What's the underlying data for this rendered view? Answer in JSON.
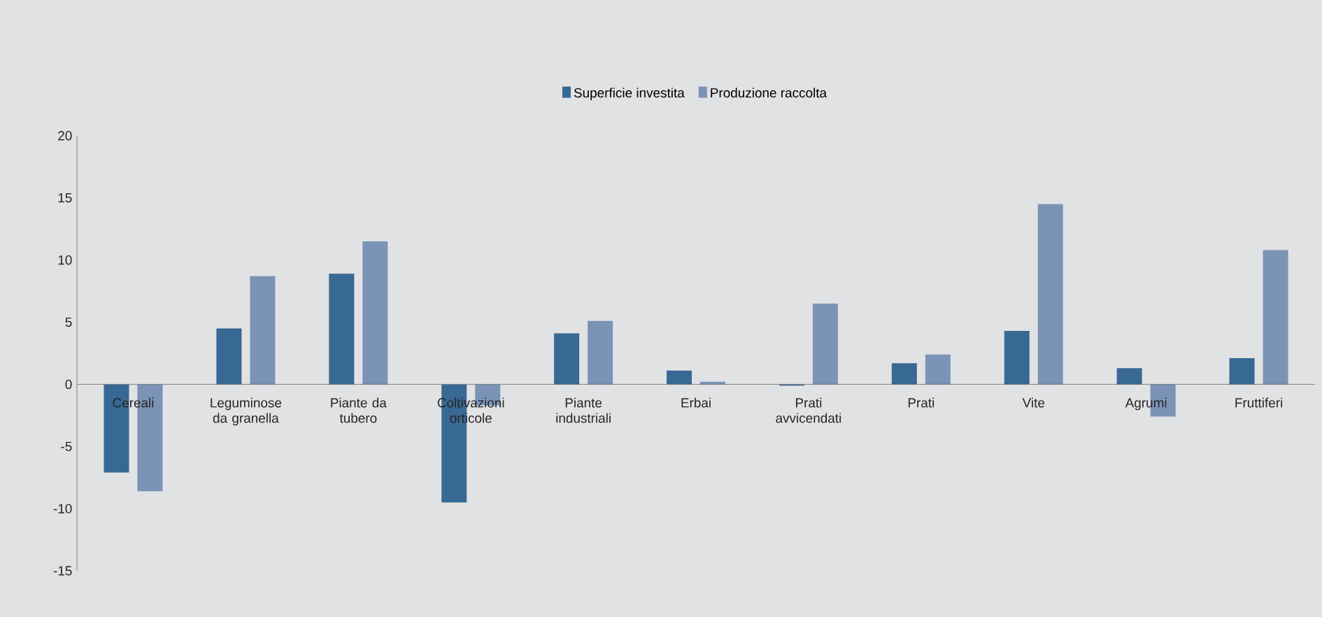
{
  "chart_data": {
    "type": "bar",
    "categories": [
      "Cereali",
      "Leguminose da granella",
      "Piante da tubero",
      "Coltivazioni orticole",
      "Piante industriali",
      "Erbai",
      "Prati avvicendati",
      "Prati",
      "Vite",
      "Agrumi",
      "Fruttiferi"
    ],
    "series": [
      {
        "name": "Superficie investita",
        "color": "#386894",
        "values": [
          -7.1,
          4.5,
          8.9,
          -9.5,
          4.1,
          1.1,
          -0.1,
          1.7,
          4.3,
          1.3,
          2.1
        ]
      },
      {
        "name": "Produzione raccolta",
        "color": "#7b93b7",
        "values": [
          -8.6,
          8.7,
          11.5,
          -1.7,
          5.1,
          0.2,
          6.5,
          2.4,
          14.5,
          -2.6,
          10.8
        ]
      }
    ],
    "ylim": [
      -15,
      20
    ],
    "yticks": [
      -15,
      -10,
      -5,
      0,
      5,
      10,
      15,
      20
    ],
    "grid": false,
    "legend": "top"
  }
}
